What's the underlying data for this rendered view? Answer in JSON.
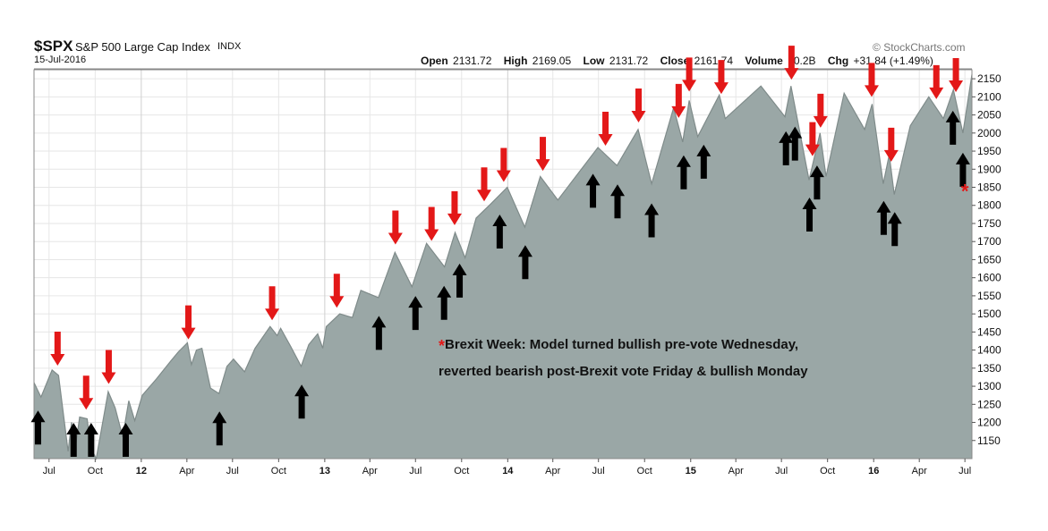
{
  "header": {
    "ticker": "$SPX",
    "name": "S&P 500 Large Cap Index",
    "exchange": "INDX",
    "date": "15-Jul-2016",
    "brand": "StockCharts.com",
    "stats": [
      {
        "label": "Open",
        "value": "2131.72"
      },
      {
        "label": "High",
        "value": "2169.05"
      },
      {
        "label": "Low",
        "value": "2131.72"
      },
      {
        "label": "Close",
        "value": "2161.74"
      },
      {
        "label": "Volume",
        "value": "10.2B"
      },
      {
        "label": "Chg",
        "value": "+31.84 (+1.49%)"
      }
    ]
  },
  "annotation": {
    "marker": "*",
    "line1": "Brexit Week: Model turned bullish pre-vote Wednesday,",
    "line2": "reverted bearish post-Brexit vote Friday & bullish Monday"
  },
  "colors": {
    "area_fill": "#9aa7a6",
    "area_line": "#7f8b8a",
    "bearish_arrow": "#e31818",
    "bullish_arrow": "#000000",
    "grid": "#e6e6e6"
  },
  "chart_data": {
    "type": "area",
    "title": "$SPX S&P 500 Large Cap Index INDX",
    "xlabel": "",
    "ylabel": "",
    "ylim": [
      1100,
      2175
    ],
    "xlim": [
      "2011-06-01",
      "2016-07-15"
    ],
    "y_ticks": [
      1150,
      1200,
      1250,
      1300,
      1350,
      1400,
      1450,
      1500,
      1550,
      1600,
      1650,
      1700,
      1750,
      1800,
      1850,
      1900,
      1950,
      2000,
      2050,
      2100,
      2150
    ],
    "x_ticks": [
      {
        "date": "2011-07-01",
        "label": "Jul"
      },
      {
        "date": "2011-10-01",
        "label": "Oct"
      },
      {
        "date": "2012-01-01",
        "label": "12"
      },
      {
        "date": "2012-04-01",
        "label": "Apr"
      },
      {
        "date": "2012-07-01",
        "label": "Jul"
      },
      {
        "date": "2012-10-01",
        "label": "Oct"
      },
      {
        "date": "2013-01-01",
        "label": "13"
      },
      {
        "date": "2013-04-01",
        "label": "Apr"
      },
      {
        "date": "2013-07-01",
        "label": "Jul"
      },
      {
        "date": "2013-10-01",
        "label": "Oct"
      },
      {
        "date": "2014-01-01",
        "label": "14"
      },
      {
        "date": "2014-04-01",
        "label": "Apr"
      },
      {
        "date": "2014-07-01",
        "label": "Jul"
      },
      {
        "date": "2014-10-01",
        "label": "Oct"
      },
      {
        "date": "2015-01-01",
        "label": "15"
      },
      {
        "date": "2015-04-01",
        "label": "Apr"
      },
      {
        "date": "2015-07-01",
        "label": "Jul"
      },
      {
        "date": "2015-10-01",
        "label": "Oct"
      },
      {
        "date": "2016-01-01",
        "label": "16"
      },
      {
        "date": "2016-04-01",
        "label": "Apr"
      },
      {
        "date": "2016-07-01",
        "label": "Jul"
      }
    ],
    "grid": true,
    "series": [
      {
        "points": [
          [
            "2011-06-01",
            1310
          ],
          [
            "2011-06-15",
            1270
          ],
          [
            "2011-07-07",
            1345
          ],
          [
            "2011-07-20",
            1330
          ],
          [
            "2011-08-08",
            1120
          ],
          [
            "2011-08-15",
            1200
          ],
          [
            "2011-08-22",
            1125
          ],
          [
            "2011-08-31",
            1215
          ],
          [
            "2011-09-15",
            1210
          ],
          [
            "2011-09-22",
            1130
          ],
          [
            "2011-10-03",
            1100
          ],
          [
            "2011-10-27",
            1285
          ],
          [
            "2011-11-10",
            1240
          ],
          [
            "2011-11-25",
            1160
          ],
          [
            "2011-12-07",
            1260
          ],
          [
            "2011-12-19",
            1205
          ],
          [
            "2012-01-03",
            1275
          ],
          [
            "2012-01-31",
            1320
          ],
          [
            "2012-02-29",
            1370
          ],
          [
            "2012-03-15",
            1395
          ],
          [
            "2012-04-02",
            1420
          ],
          [
            "2012-04-10",
            1360
          ],
          [
            "2012-04-20",
            1400
          ],
          [
            "2012-05-01",
            1405
          ],
          [
            "2012-05-18",
            1295
          ],
          [
            "2012-06-04",
            1280
          ],
          [
            "2012-06-20",
            1355
          ],
          [
            "2012-07-03",
            1375
          ],
          [
            "2012-07-25",
            1340
          ],
          [
            "2012-08-15",
            1405
          ],
          [
            "2012-09-14",
            1465
          ],
          [
            "2012-09-28",
            1440
          ],
          [
            "2012-10-05",
            1460
          ],
          [
            "2012-10-25",
            1410
          ],
          [
            "2012-11-15",
            1355
          ],
          [
            "2012-11-30",
            1415
          ],
          [
            "2012-12-18",
            1445
          ],
          [
            "2012-12-28",
            1405
          ],
          [
            "2013-01-04",
            1465
          ],
          [
            "2013-01-31",
            1500
          ],
          [
            "2013-02-25",
            1490
          ],
          [
            "2013-03-14",
            1565
          ],
          [
            "2013-04-18",
            1545
          ],
          [
            "2013-05-21",
            1670
          ],
          [
            "2013-06-24",
            1575
          ],
          [
            "2013-07-23",
            1695
          ],
          [
            "2013-08-28",
            1630
          ],
          [
            "2013-09-18",
            1725
          ],
          [
            "2013-10-08",
            1655
          ],
          [
            "2013-10-30",
            1765
          ],
          [
            "2013-11-29",
            1805
          ],
          [
            "2013-12-31",
            1850
          ],
          [
            "2014-02-04",
            1740
          ],
          [
            "2014-03-07",
            1880
          ],
          [
            "2014-04-11",
            1815
          ],
          [
            "2014-06-30",
            1960
          ],
          [
            "2014-08-07",
            1910
          ],
          [
            "2014-09-18",
            2010
          ],
          [
            "2014-10-15",
            1860
          ],
          [
            "2014-11-28",
            2070
          ],
          [
            "2014-12-16",
            1975
          ],
          [
            "2014-12-29",
            2090
          ],
          [
            "2015-01-15",
            1990
          ],
          [
            "2015-02-27",
            2105
          ],
          [
            "2015-03-11",
            2040
          ],
          [
            "2015-05-21",
            2130
          ],
          [
            "2015-07-08",
            2045
          ],
          [
            "2015-07-20",
            2130
          ],
          [
            "2015-08-25",
            1870
          ],
          [
            "2015-09-16",
            2000
          ],
          [
            "2015-09-28",
            1880
          ],
          [
            "2015-11-03",
            2110
          ],
          [
            "2015-12-14",
            2010
          ],
          [
            "2015-12-29",
            2080
          ],
          [
            "2016-01-20",
            1860
          ],
          [
            "2016-02-01",
            1940
          ],
          [
            "2016-02-11",
            1830
          ],
          [
            "2016-03-14",
            2020
          ],
          [
            "2016-04-20",
            2100
          ],
          [
            "2016-05-19",
            2040
          ],
          [
            "2016-06-08",
            2120
          ],
          [
            "2016-06-27",
            2000
          ],
          [
            "2016-07-15",
            2162
          ]
        ]
      }
    ],
    "arrows": {
      "bearish": [
        "2011-07-18",
        "2011-09-13",
        "2011-10-28",
        "2012-04-04",
        "2012-09-18",
        "2013-01-25",
        "2013-05-22",
        "2013-08-02",
        "2013-09-17",
        "2013-11-15",
        "2013-12-24",
        "2014-03-12",
        "2014-07-15",
        "2014-09-19",
        "2014-12-08",
        "2014-12-29",
        "2015-03-03",
        "2015-07-21",
        "2015-09-01",
        "2015-09-17",
        "2015-12-28",
        "2016-02-05",
        "2016-05-05",
        "2016-06-13"
      ],
      "bullish": [
        "2011-06-09",
        "2011-08-19",
        "2011-09-23",
        "2011-12-01",
        "2012-06-05",
        "2012-11-16",
        "2013-04-19",
        "2013-07-01",
        "2013-08-27",
        "2013-09-27",
        "2013-12-16",
        "2014-02-05",
        "2014-06-20",
        "2014-08-08",
        "2014-10-15",
        "2014-12-18",
        "2015-01-27",
        "2015-07-10",
        "2015-07-28",
        "2015-08-26",
        "2015-09-10",
        "2016-01-21",
        "2016-02-12",
        "2016-06-07",
        "2016-06-27"
      ]
    }
  }
}
